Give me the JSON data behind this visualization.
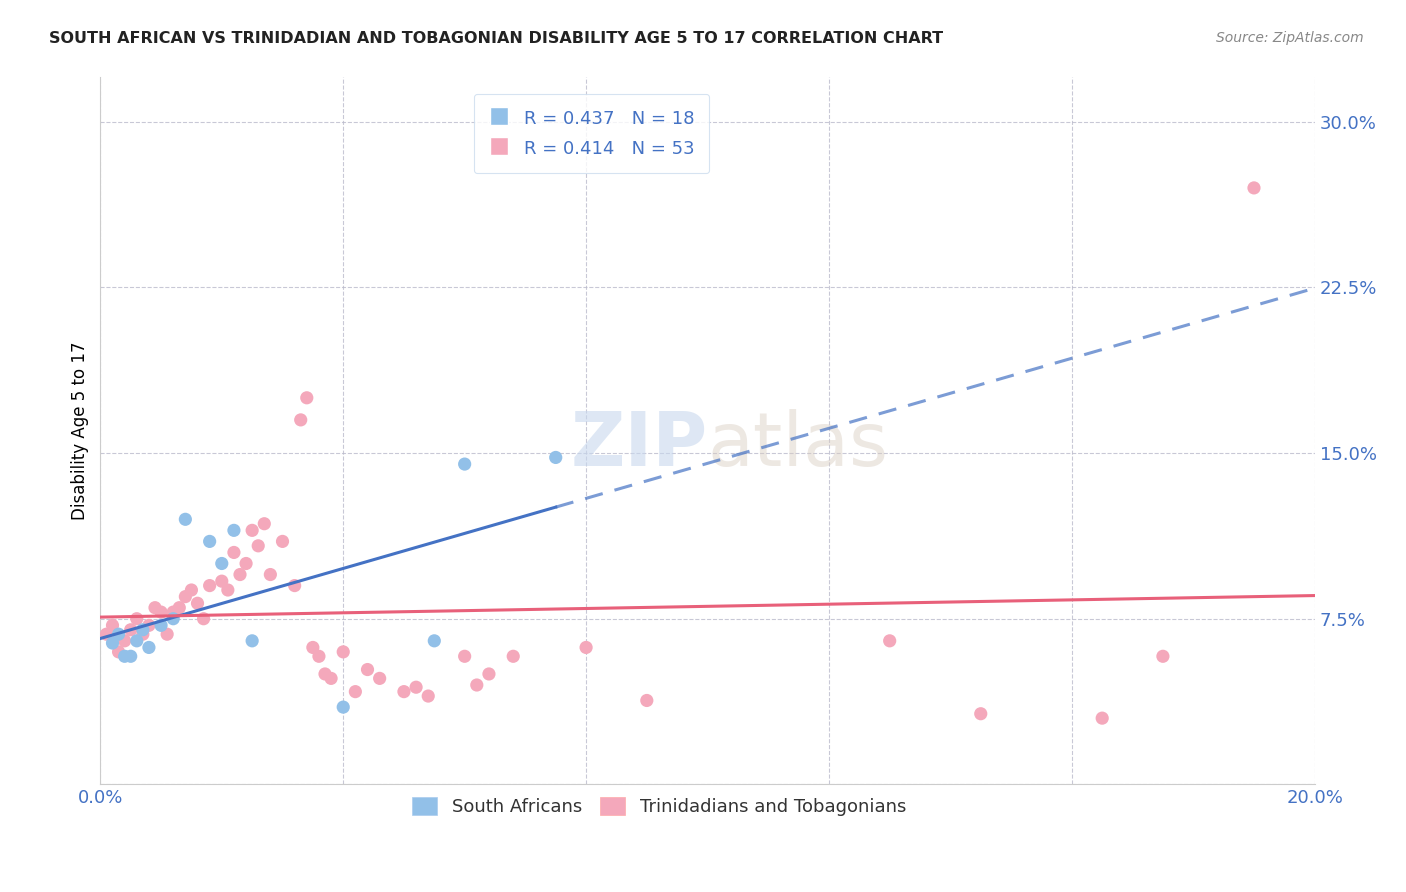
{
  "title": "SOUTH AFRICAN VS TRINIDADIAN AND TOBAGONIAN DISABILITY AGE 5 TO 17 CORRELATION CHART",
  "source": "Source: ZipAtlas.com",
  "ylabel": "Disability Age 5 to 17",
  "xlim": [
    0.0,
    0.2
  ],
  "ylim": [
    0.0,
    0.32
  ],
  "yticks": [
    0.0,
    0.075,
    0.15,
    0.225,
    0.3
  ],
  "ytick_labels": [
    "",
    "7.5%",
    "15.0%",
    "22.5%",
    "30.0%"
  ],
  "xticks": [
    0.0,
    0.04,
    0.08,
    0.12,
    0.16,
    0.2
  ],
  "xtick_labels": [
    "0.0%",
    "",
    "",
    "",
    "",
    "20.0%"
  ],
  "sa_color": "#92C0E8",
  "tt_color": "#F4A8BB",
  "sa_line_color": "#4472C4",
  "tt_line_color": "#E8607A",
  "r_sa": 0.437,
  "n_sa": 18,
  "r_tt": 0.414,
  "n_tt": 53,
  "sa_points_x": [
    0.002,
    0.003,
    0.004,
    0.005,
    0.006,
    0.007,
    0.008,
    0.01,
    0.012,
    0.014,
    0.018,
    0.02,
    0.022,
    0.025,
    0.04,
    0.055,
    0.06,
    0.075
  ],
  "sa_points_y": [
    0.064,
    0.068,
    0.058,
    0.058,
    0.065,
    0.07,
    0.062,
    0.072,
    0.075,
    0.12,
    0.11,
    0.1,
    0.115,
    0.065,
    0.035,
    0.065,
    0.145,
    0.148
  ],
  "tt_points_x": [
    0.001,
    0.002,
    0.003,
    0.004,
    0.005,
    0.006,
    0.007,
    0.008,
    0.009,
    0.01,
    0.011,
    0.012,
    0.013,
    0.014,
    0.015,
    0.016,
    0.017,
    0.018,
    0.02,
    0.021,
    0.022,
    0.023,
    0.024,
    0.025,
    0.026,
    0.027,
    0.028,
    0.03,
    0.032,
    0.033,
    0.034,
    0.035,
    0.036,
    0.037,
    0.038,
    0.04,
    0.042,
    0.044,
    0.046,
    0.05,
    0.052,
    0.054,
    0.06,
    0.062,
    0.064,
    0.068,
    0.08,
    0.09,
    0.13,
    0.145,
    0.165,
    0.175,
    0.19
  ],
  "tt_points_y": [
    0.068,
    0.072,
    0.06,
    0.065,
    0.07,
    0.075,
    0.068,
    0.072,
    0.08,
    0.078,
    0.068,
    0.078,
    0.08,
    0.085,
    0.088,
    0.082,
    0.075,
    0.09,
    0.092,
    0.088,
    0.105,
    0.095,
    0.1,
    0.115,
    0.108,
    0.118,
    0.095,
    0.11,
    0.09,
    0.165,
    0.175,
    0.062,
    0.058,
    0.05,
    0.048,
    0.06,
    0.042,
    0.052,
    0.048,
    0.042,
    0.044,
    0.04,
    0.058,
    0.045,
    0.05,
    0.058,
    0.062,
    0.038,
    0.065,
    0.032,
    0.03,
    0.058,
    0.27
  ]
}
